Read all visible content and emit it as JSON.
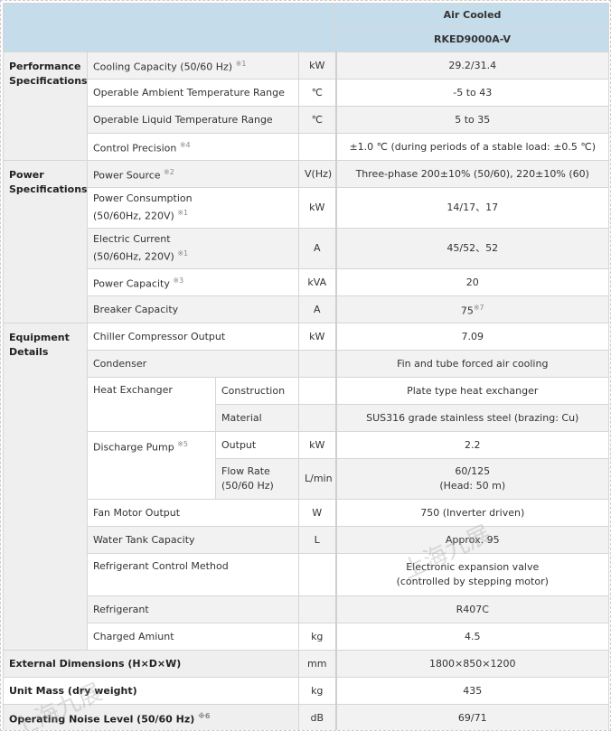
{
  "header": {
    "type": "Air Cooled",
    "model": "RKED9000A-V"
  },
  "groups": {
    "performance": "Performance Specifications",
    "power": "Power Specifications",
    "equipment": "Equipment Details"
  },
  "rows": {
    "cooling": {
      "label": "Cooling Capacity (50/60 Hz)",
      "note": "※1",
      "unit": "kW",
      "value": "29.2/31.4"
    },
    "ambient": {
      "label": "Operable Ambient Temperature Range",
      "unit": "℃",
      "value": "-5 to 43"
    },
    "liquid": {
      "label": "Operable Liquid Temperature Range",
      "unit": "℃",
      "value": "5 to 35"
    },
    "precision": {
      "label": "Control Precision",
      "note": "※4",
      "unit": "",
      "value": "±1.0 ℃ (during periods of a stable load: ±0.5 ℃)"
    },
    "source": {
      "label": "Power Source",
      "note": "※2",
      "unit": "V(Hz)",
      "value": "Three-phase 200±10% (50/60), 220±10% (60)"
    },
    "consumption": {
      "label": "Power Consumption",
      "label2": "(50/60Hz, 220V)",
      "note": "※1",
      "unit": "kW",
      "value": "14/17、17"
    },
    "current": {
      "label": "Electric Current",
      "label2": "(50/60Hz, 220V)",
      "note": "※1",
      "unit": "A",
      "value": "45/52、52"
    },
    "capacity": {
      "label": "Power Capacity",
      "note": "※3",
      "unit": "kVA",
      "value": "20"
    },
    "breaker": {
      "label": "Breaker Capacity",
      "unit": "A",
      "value": "75",
      "value_note": "※7"
    },
    "compressor": {
      "label": "Chiller Compressor Output",
      "unit": "kW",
      "value": "7.09"
    },
    "condenser": {
      "label": "Condenser",
      "unit": "",
      "value": "Fin and tube forced air cooling"
    },
    "heat_exchanger": {
      "label": "Heat Exchanger",
      "construction": {
        "label": "Construction",
        "unit": "",
        "value": "Plate type heat exchanger"
      },
      "material": {
        "label": "Material",
        "unit": "",
        "value": "SUS316 grade stainless steel (brazing: Cu)"
      }
    },
    "pump": {
      "label": "Discharge Pump",
      "note": "※5",
      "output": {
        "label": "Output",
        "unit": "kW",
        "value": "2.2"
      },
      "flow": {
        "label": "Flow Rate",
        "label2": "(50/60 Hz)",
        "unit": "L/min",
        "value": "60/125",
        "value2": "(Head: 50 m)"
      }
    },
    "fan": {
      "label": "Fan Motor Output",
      "unit": "W",
      "value": "750 (Inverter driven)"
    },
    "tank": {
      "label": "Water Tank Capacity",
      "unit": "L",
      "value": "Approx. 95"
    },
    "refctrl": {
      "label": "Refrigerant Control Method",
      "unit": "",
      "value": "Electronic expansion valve",
      "value2": "(controlled by stepping motor)"
    },
    "refrigerant": {
      "label": "Refrigerant",
      "unit": "",
      "value": "R407C"
    },
    "charged": {
      "label": "Charged Amiunt",
      "unit": "kg",
      "value": "4.5"
    },
    "dimensions": {
      "label": "External Dimensions (H×D×W)",
      "unit": "mm",
      "value": "1800×850×1200"
    },
    "mass": {
      "label": "Unit Mass (dry weight)",
      "unit": "kg",
      "value": "435"
    },
    "noise": {
      "label": "Operating Noise Level (50/60 Hz)",
      "note": "※6",
      "unit": "dB",
      "value": "69/71"
    }
  },
  "watermark": "上海九展"
}
